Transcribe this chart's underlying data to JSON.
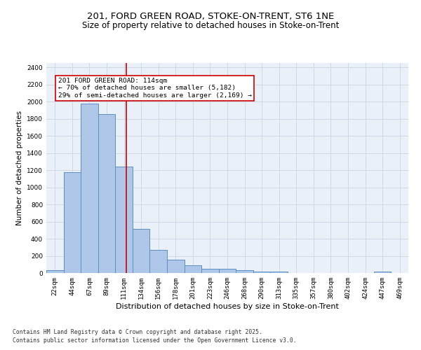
{
  "title_line1": "201, FORD GREEN ROAD, STOKE-ON-TRENT, ST6 1NE",
  "title_line2": "Size of property relative to detached houses in Stoke-on-Trent",
  "xlabel": "Distribution of detached houses by size in Stoke-on-Trent",
  "ylabel": "Number of detached properties",
  "categories": [
    "22sqm",
    "44sqm",
    "67sqm",
    "89sqm",
    "111sqm",
    "134sqm",
    "156sqm",
    "178sqm",
    "201sqm",
    "223sqm",
    "246sqm",
    "268sqm",
    "290sqm",
    "313sqm",
    "335sqm",
    "357sqm",
    "380sqm",
    "402sqm",
    "424sqm",
    "447sqm",
    "469sqm"
  ],
  "values": [
    30,
    1175,
    1975,
    1850,
    1240,
    515,
    270,
    155,
    90,
    50,
    45,
    30,
    20,
    15,
    0,
    0,
    0,
    0,
    0,
    20,
    0
  ],
  "bar_color": "#aec6e8",
  "bar_edge_color": "#5a8fc2",
  "grid_color": "#d0d8e8",
  "background_color": "#eaf0f8",
  "vline_color": "#cc0000",
  "annotation_text": "201 FORD GREEN ROAD: 114sqm\n← 70% of detached houses are smaller (5,182)\n29% of semi-detached houses are larger (2,169) →",
  "annotation_box_color": "#cc0000",
  "ylim": [
    0,
    2450
  ],
  "yticks": [
    0,
    200,
    400,
    600,
    800,
    1000,
    1200,
    1400,
    1600,
    1800,
    2000,
    2200,
    2400
  ],
  "footer_line1": "Contains HM Land Registry data © Crown copyright and database right 2025.",
  "footer_line2": "Contains public sector information licensed under the Open Government Licence v3.0.",
  "title_fontsize": 9.5,
  "subtitle_fontsize": 8.5,
  "xlabel_fontsize": 8,
  "ylabel_fontsize": 7.5,
  "tick_fontsize": 6.5,
  "annotation_fontsize": 6.8,
  "footer_fontsize": 5.8
}
